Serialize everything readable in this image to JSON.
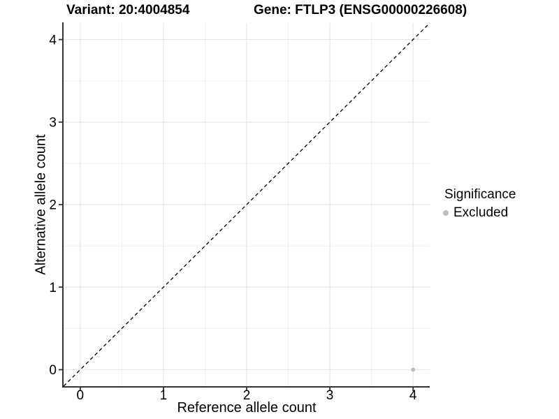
{
  "header": {
    "title_left": "Variant: 20:4004854",
    "title_right": "Gene: FTLP3 (ENSG00000226608)"
  },
  "legend": {
    "title": "Significance",
    "items": [
      {
        "label": "Excluded",
        "color": "#bebebe"
      }
    ]
  },
  "colors": {
    "background": "#ffffff",
    "grid_major": "#e2e2e2",
    "grid_minor": "#f0f0f0",
    "axis": "#333333",
    "text": "#000000",
    "point": "#bebebe",
    "reference_line": "#000000"
  },
  "chart_data": {
    "type": "scatter",
    "title": "Variant: 20:4004854    Gene: FTLP3 (ENSG00000226608)",
    "xlabel": "Reference allele count",
    "ylabel": "Alternative allele count",
    "xlim": [
      -0.2,
      4.2
    ],
    "ylim": [
      -0.2,
      4.2
    ],
    "x_ticks": [
      0,
      1,
      2,
      3,
      4
    ],
    "y_ticks": [
      0,
      1,
      2,
      3,
      4
    ],
    "grid": "major+minor",
    "legend_position": "right",
    "series": [
      {
        "name": "Excluded",
        "color": "#bebebe",
        "points": [
          {
            "x": 4,
            "y": 0
          }
        ]
      }
    ],
    "reference_line": {
      "type": "abline",
      "slope": 1,
      "intercept": 0,
      "style": "dashed",
      "color": "#000000"
    }
  }
}
